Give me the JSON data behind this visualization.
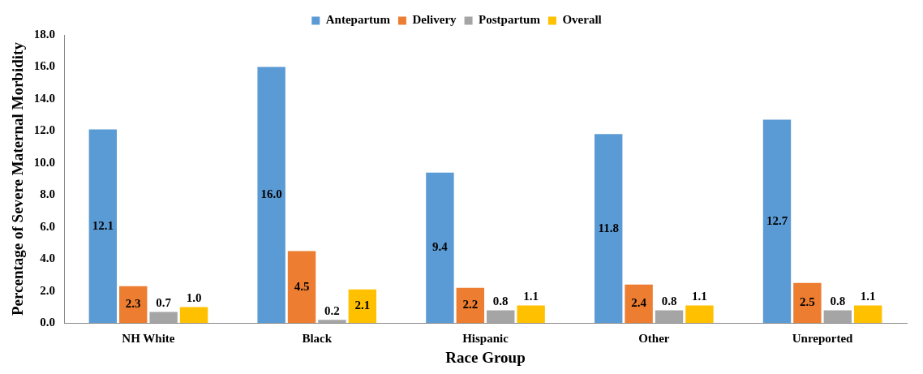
{
  "chart_data": {
    "type": "bar",
    "xlabel": "Race Group",
    "ylabel": "Percentage of Severe Maternal Morbidity",
    "categories": [
      "NH White",
      "Black",
      "Hispanic",
      "Other",
      "Unreported"
    ],
    "series": [
      {
        "name": "Antepartum",
        "color": "#5b9bd5",
        "values": [
          12.1,
          16.0,
          9.4,
          11.8,
          12.7
        ],
        "value_labels": [
          "12.1",
          "16.0",
          "9.4",
          "11.8",
          "12.7"
        ]
      },
      {
        "name": "Delivery",
        "color": "#ed7d31",
        "values": [
          2.3,
          4.5,
          2.2,
          2.4,
          2.5
        ],
        "value_labels": [
          "2.3",
          "4.5",
          "2.2",
          "2.4",
          "2.5"
        ]
      },
      {
        "name": "Postpartum",
        "color": "#a5a5a5",
        "values": [
          0.7,
          0.2,
          0.8,
          0.8,
          0.8
        ],
        "value_labels": [
          "0.7",
          "0.2",
          "0.8",
          "0.8",
          "0.8"
        ]
      },
      {
        "name": "Overall",
        "color": "#ffc000",
        "values": [
          1.0,
          2.1,
          1.1,
          1.1,
          1.1
        ],
        "value_labels": [
          "1.0",
          "2.1",
          "1.1",
          "1.1",
          "1.1"
        ]
      }
    ],
    "ylim": [
      0,
      18
    ],
    "yticks": [
      {
        "value": 0,
        "label": "0.0"
      },
      {
        "value": 2,
        "label": "2.0"
      },
      {
        "value": 4,
        "label": "4.0"
      },
      {
        "value": 6,
        "label": "6.0"
      },
      {
        "value": 8,
        "label": "8.0"
      },
      {
        "value": 10,
        "label": "10.0"
      },
      {
        "value": 12,
        "label": "12.0"
      },
      {
        "value": 14,
        "label": "14.0"
      },
      {
        "value": 16,
        "label": "16.0"
      },
      {
        "value": 18,
        "label": "18.0"
      }
    ],
    "grid": false,
    "legend": "top"
  }
}
